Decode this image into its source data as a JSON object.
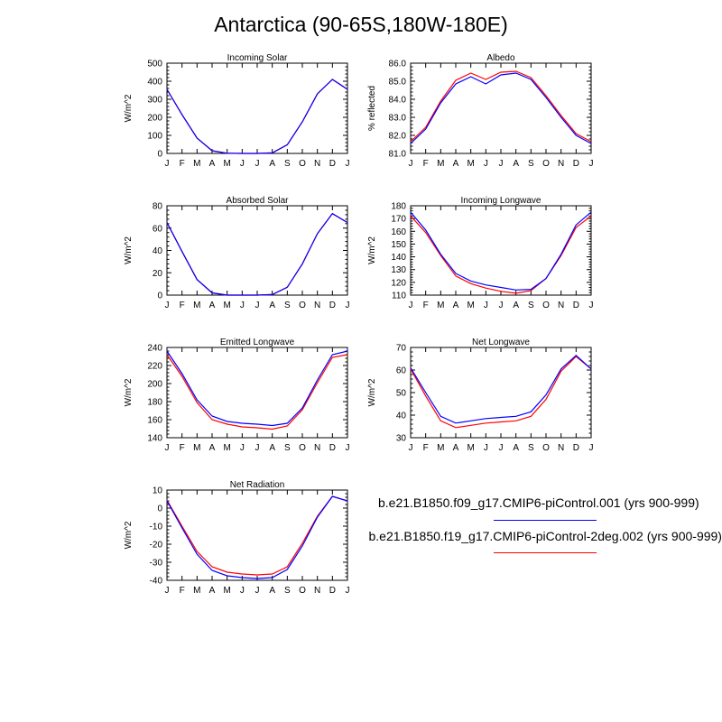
{
  "title": "Antarctica (90-65S,180W-180E)",
  "colors": {
    "series1": "#0000ff",
    "series2": "#ff0000"
  },
  "legend": [
    {
      "label": "b.e21.B1850.f09_g17.CMIP6-piControl.001 (yrs 900-999)",
      "color": "#0000ff"
    },
    {
      "label": "b.e21.B1850.f19_g17.CMIP6-piControl-2deg.002 (yrs 900-999)",
      "color": "#ff0000"
    }
  ],
  "chart_data": [
    {
      "type": "line",
      "title": "Incoming Solar",
      "ylabel": "W/m^2",
      "categories": [
        "J",
        "F",
        "M",
        "A",
        "M",
        "J",
        "J",
        "A",
        "S",
        "O",
        "N",
        "D",
        "J"
      ],
      "ylim": [
        0,
        500
      ],
      "yticks": [
        "0",
        "100",
        "200",
        "300",
        "400",
        "500"
      ],
      "series": [
        {
          "values": [
            355,
            215,
            85,
            15,
            1,
            0,
            0,
            3,
            48,
            175,
            330,
            410,
            355
          ]
        },
        {
          "values": [
            355,
            215,
            85,
            15,
            1,
            0,
            0,
            3,
            48,
            175,
            330,
            410,
            355
          ]
        }
      ]
    },
    {
      "type": "line",
      "title": "Albedo",
      "ylabel": "% reflected",
      "categories": [
        "J",
        "F",
        "M",
        "A",
        "M",
        "J",
        "J",
        "A",
        "S",
        "O",
        "N",
        "D",
        "J"
      ],
      "ylim": [
        81.0,
        86.0
      ],
      "yticks": [
        "81.0",
        "82.0",
        "83.0",
        "84.0",
        "85.0",
        "86.0"
      ],
      "series": [
        {
          "values": [
            81.55,
            82.35,
            83.8,
            84.85,
            85.25,
            84.85,
            85.35,
            85.45,
            85.1,
            84.1,
            83.0,
            82.0,
            81.55
          ]
        },
        {
          "values": [
            81.65,
            82.45,
            83.9,
            85.05,
            85.45,
            85.1,
            85.5,
            85.55,
            85.2,
            84.2,
            83.1,
            82.1,
            81.65
          ]
        }
      ]
    },
    {
      "type": "line",
      "title": "Absorbed Solar",
      "ylabel": "W/m^2",
      "categories": [
        "J",
        "F",
        "M",
        "A",
        "M",
        "J",
        "J",
        "A",
        "S",
        "O",
        "N",
        "D",
        "J"
      ],
      "ylim": [
        0,
        80
      ],
      "yticks": [
        "0",
        "20",
        "40",
        "60",
        "80"
      ],
      "series": [
        {
          "values": [
            65,
            39,
            14,
            2,
            0,
            0,
            0,
            0.5,
            7,
            28,
            55,
            73,
            65
          ]
        },
        {
          "values": [
            65,
            39,
            14,
            2,
            0,
            0,
            0,
            0.5,
            7,
            28,
            55,
            73,
            65
          ]
        }
      ]
    },
    {
      "type": "line",
      "title": "Incoming Longwave",
      "ylabel": "W/m^2",
      "categories": [
        "J",
        "F",
        "M",
        "A",
        "M",
        "J",
        "J",
        "A",
        "S",
        "O",
        "N",
        "D",
        "J"
      ],
      "ylim": [
        110,
        180
      ],
      "yticks": [
        "110",
        "120",
        "130",
        "140",
        "150",
        "160",
        "170",
        "180"
      ],
      "series": [
        {
          "values": [
            175,
            161,
            142,
            127,
            121,
            118,
            116,
            114,
            114.5,
            123,
            142,
            165,
            175
          ]
        },
        {
          "values": [
            172,
            159,
            141,
            125,
            119,
            115.5,
            113,
            111.5,
            113.5,
            123,
            141,
            163,
            172
          ]
        }
      ]
    },
    {
      "type": "line",
      "title": "Emitted Longwave",
      "ylabel": "W/m^2",
      "categories": [
        "J",
        "F",
        "M",
        "A",
        "M",
        "J",
        "J",
        "A",
        "S",
        "O",
        "N",
        "D",
        "J"
      ],
      "ylim": [
        140,
        240
      ],
      "yticks": [
        "140",
        "160",
        "180",
        "200",
        "220",
        "240"
      ],
      "series": [
        {
          "values": [
            236,
            211,
            182,
            164,
            158,
            156,
            155,
            153.5,
            156,
            173,
            204,
            232,
            236
          ]
        },
        {
          "values": [
            232,
            208,
            179,
            160,
            155,
            152,
            151,
            149.5,
            153,
            171,
            201,
            229,
            232
          ]
        }
      ]
    },
    {
      "type": "line",
      "title": "Net Longwave",
      "ylabel": "W/m^2",
      "categories": [
        "J",
        "F",
        "M",
        "A",
        "M",
        "J",
        "J",
        "A",
        "S",
        "O",
        "N",
        "D",
        "J"
      ],
      "ylim": [
        30,
        70
      ],
      "yticks": [
        "30",
        "40",
        "50",
        "60",
        "70"
      ],
      "series": [
        {
          "values": [
            61,
            50,
            39.5,
            36.5,
            37.5,
            38.5,
            39,
            39.5,
            41.5,
            49,
            60.5,
            66.5,
            60.5
          ]
        },
        {
          "values": [
            60.5,
            48.5,
            37.5,
            34.5,
            35.5,
            36.5,
            37,
            37.5,
            39.5,
            47,
            59.5,
            66,
            60.5
          ]
        }
      ]
    },
    {
      "type": "line",
      "title": "Net Radiation",
      "ylabel": "W/m^2",
      "categories": [
        "J",
        "F",
        "M",
        "A",
        "M",
        "J",
        "J",
        "A",
        "S",
        "O",
        "N",
        "D",
        "J"
      ],
      "ylim": [
        -40,
        10
      ],
      "yticks": [
        "-40",
        "-30",
        "-20",
        "-10",
        "0",
        "10"
      ],
      "series": [
        {
          "values": [
            4,
            -11,
            -25.5,
            -34.5,
            -37.5,
            -38.5,
            -39,
            -38.5,
            -34,
            -21,
            -5,
            6.5,
            4
          ]
        },
        {
          "values": [
            4.5,
            -10,
            -24,
            -32.5,
            -35.5,
            -36.5,
            -37,
            -36.5,
            -32.5,
            -19.5,
            -4.5,
            6.5,
            4
          ]
        }
      ]
    }
  ]
}
